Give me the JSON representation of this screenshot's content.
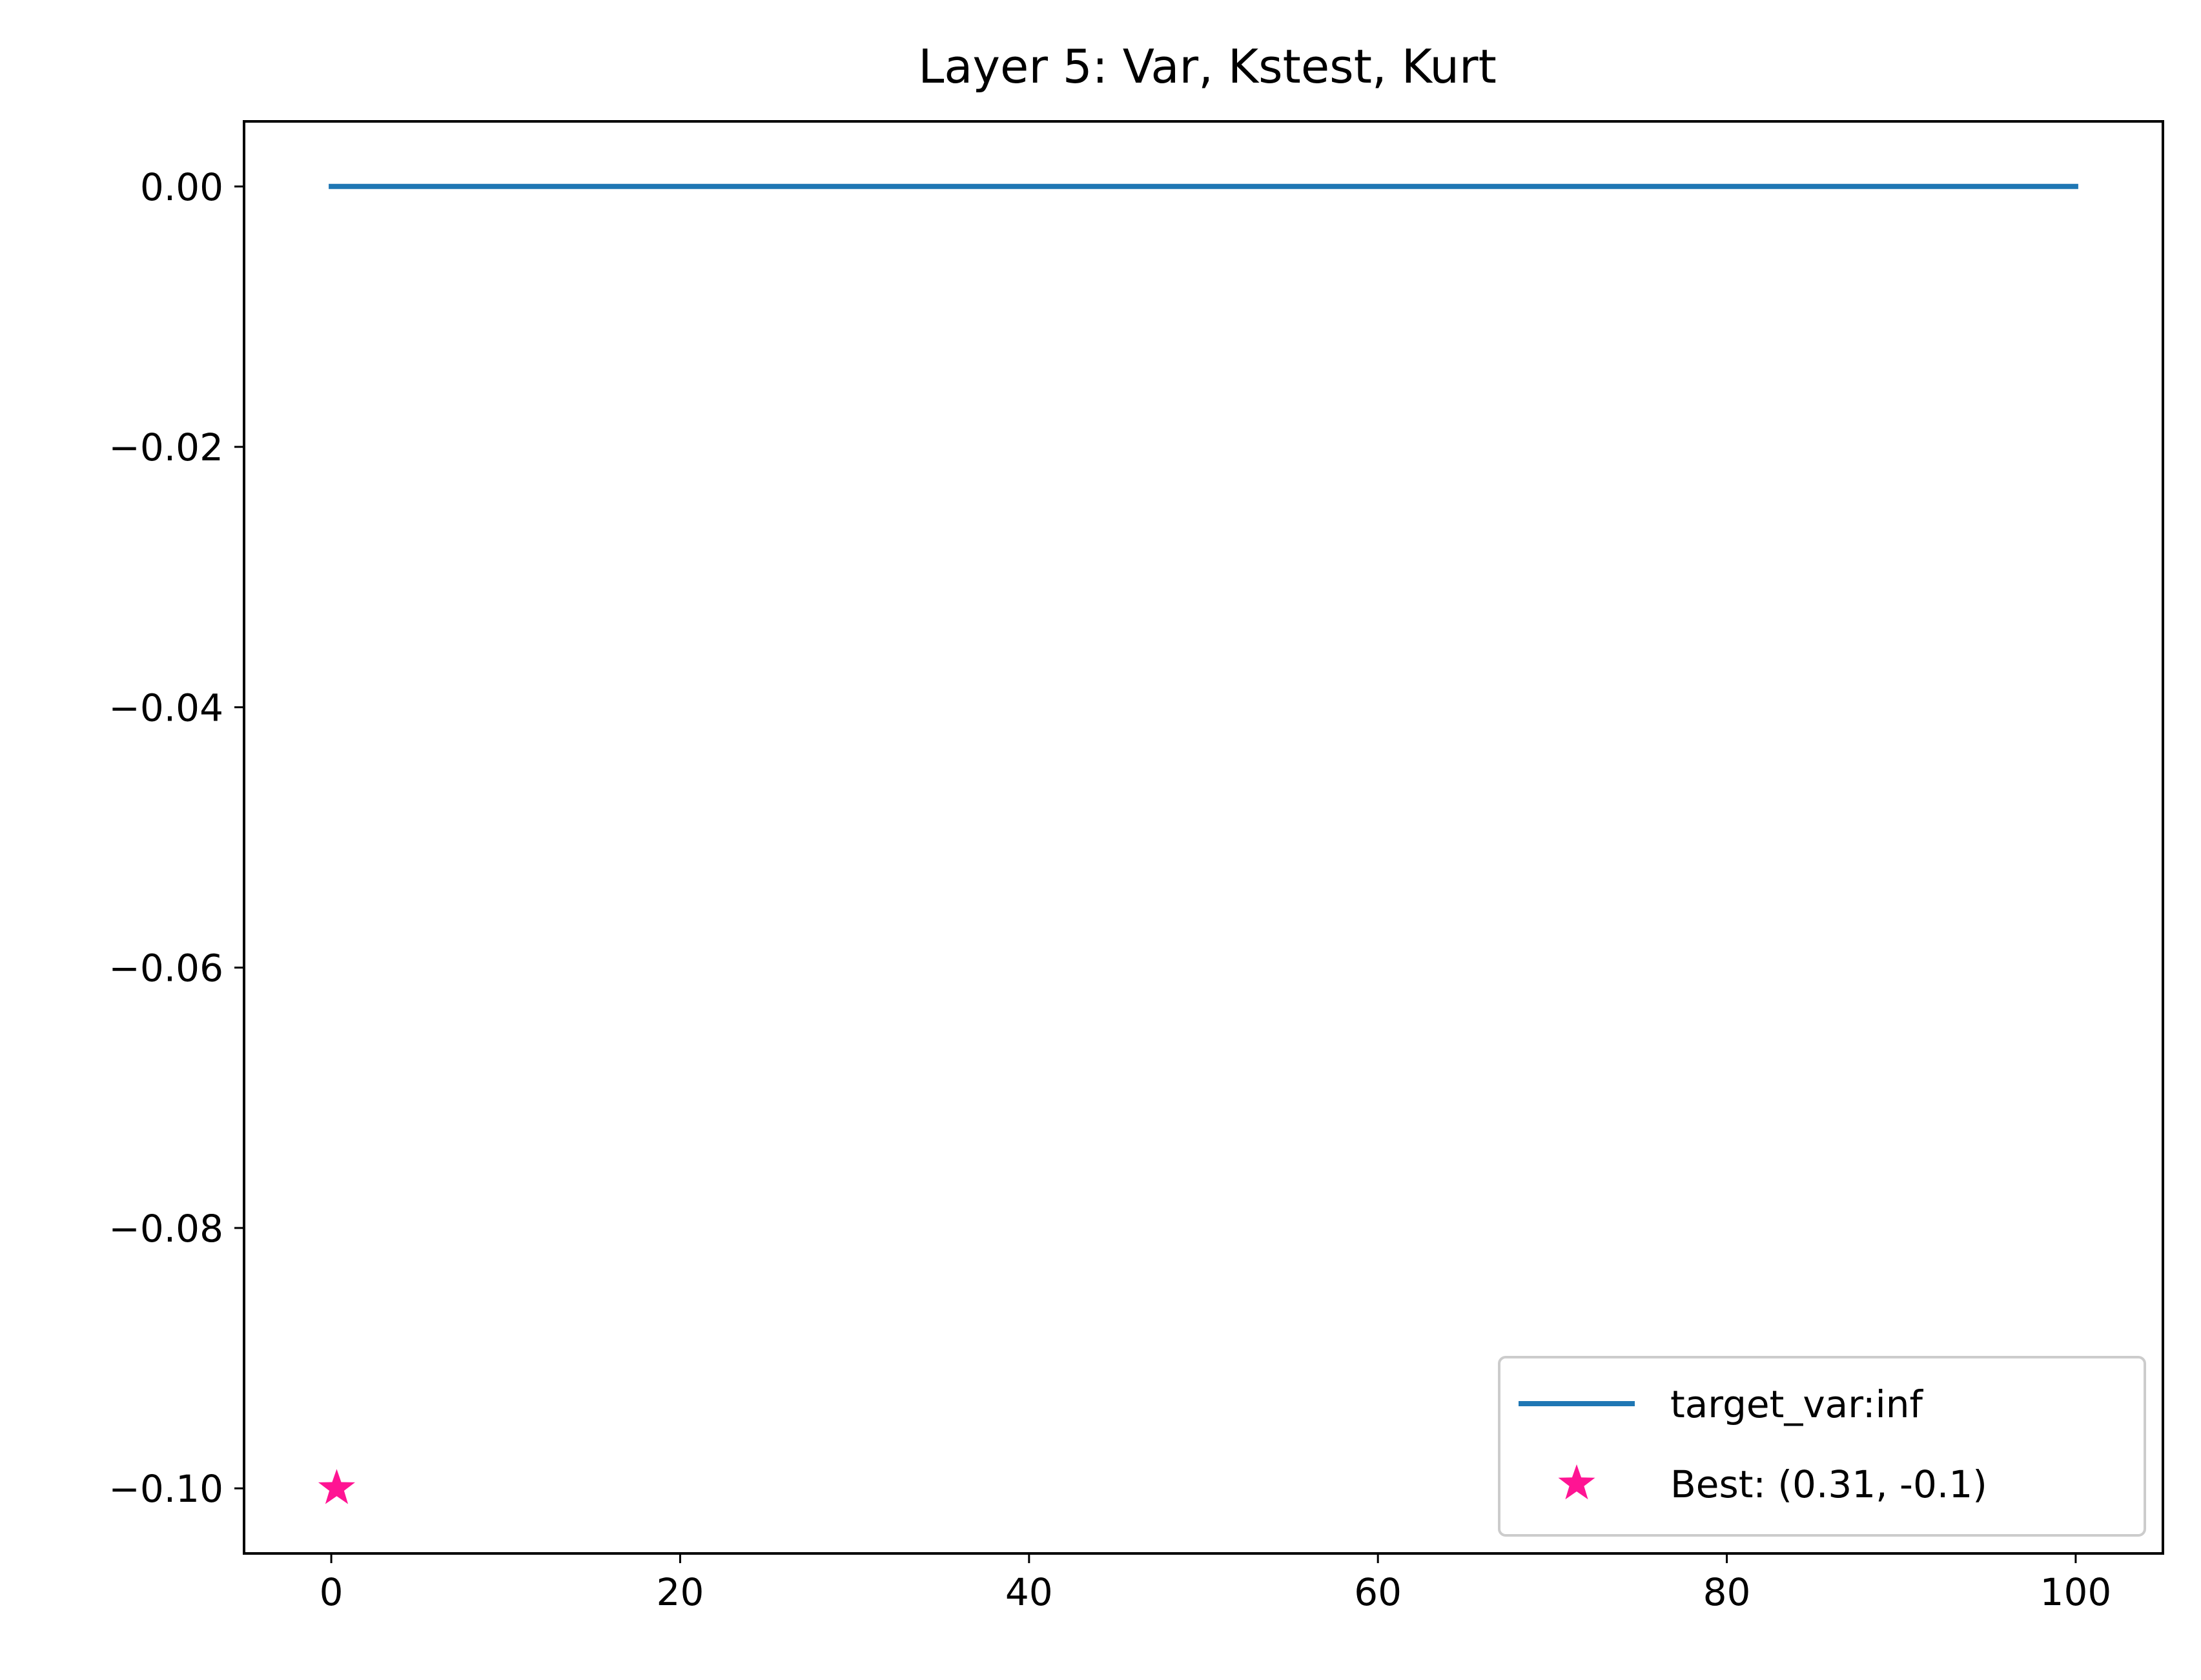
{
  "chart_data": {
    "type": "line",
    "title": "Layer 5: Var, Kstest, Kurt",
    "xlabel": "",
    "ylabel": "",
    "xlim": [
      -5,
      105
    ],
    "ylim": [
      -0.105,
      0.005
    ],
    "x_ticks": [
      0,
      20,
      40,
      60,
      80,
      100
    ],
    "x_tick_labels": [
      "0",
      "20",
      "40",
      "60",
      "80",
      "100"
    ],
    "y_ticks": [
      0.0,
      -0.02,
      -0.04,
      -0.06,
      -0.08,
      -0.1
    ],
    "y_tick_labels": [
      "0.00",
      "−0.02",
      "−0.04",
      "−0.06",
      "−0.08",
      "−0.10"
    ],
    "grid": false,
    "legend_position": "lower right",
    "series": [
      {
        "name": "target_var:inf",
        "kind": "line",
        "color": "#1f77b4",
        "x": [
          0,
          100
        ],
        "y": [
          0.0,
          0.0
        ]
      },
      {
        "name": "Best: (0.31, -0.1)",
        "kind": "scatter",
        "marker": "star",
        "color": "#ff1493",
        "x": [
          0.31
        ],
        "y": [
          -0.1
        ]
      }
    ]
  }
}
